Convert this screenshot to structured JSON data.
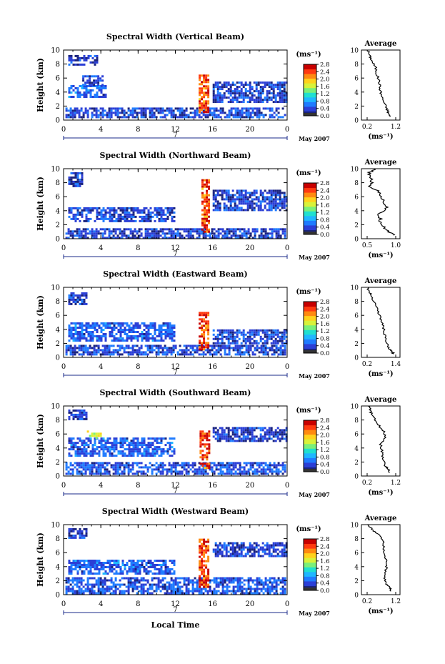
{
  "figure": {
    "x_label": "Local Time",
    "x_ticks": [
      "0",
      "4",
      "8",
      "12",
      "16",
      "20",
      "0"
    ],
    "date_marker": "7",
    "month_label": "May 2007",
    "y_label": "Height (km)",
    "y_ticks": [
      "0",
      "2",
      "4",
      "6",
      "8",
      "10"
    ],
    "colorbar_unit": "(ms⁻¹)",
    "colorbar_ticks": [
      "0.0",
      "0.4",
      "0.8",
      "1.2",
      "1.6",
      "2.0",
      "2.4",
      "2.8"
    ],
    "average_title": "Average",
    "average_xlabel": "(ms⁻¹)"
  },
  "panels": [
    {
      "title": "Spectral Width (Vertical Beam)",
      "avg_ticks": [
        "0.2",
        "1.2"
      ]
    },
    {
      "title": "Spectral Width (Northward Beam)",
      "avg_ticks": [
        "0.5",
        "1.0"
      ]
    },
    {
      "title": "Spectral Width (Eastward Beam)",
      "avg_ticks": [
        "0.2",
        "1.4"
      ]
    },
    {
      "title": "Spectral Width (Southward Beam)",
      "avg_ticks": [
        "0.2",
        "1.2"
      ]
    },
    {
      "title": "Spectral Width (Westward Beam)",
      "avg_ticks": [
        "0.2",
        "1.2"
      ]
    }
  ],
  "chart_data": [
    {
      "type": "heatmap",
      "title": "Spectral Width (Vertical Beam)",
      "xlabel": "",
      "ylabel": "Height (km)",
      "xlim": [
        0,
        24
      ],
      "ylim": [
        0,
        10
      ],
      "zlim": [
        0,
        3.0
      ],
      "zunit": "(ms⁻¹)",
      "colormap": [
        "#1a237e",
        "#2b3fd6",
        "#1f7bff",
        "#1fb7ff",
        "#20e0d0",
        "#7af07a",
        "#d8f23a",
        "#ffd21c",
        "#ff8a10",
        "#ff3a10",
        "#c80000"
      ],
      "blobs": [
        {
          "x": [
            0.2,
            23.8
          ],
          "y": [
            0.3,
            1.8
          ],
          "value": 0.45
        },
        {
          "x": [
            0.5,
            3.5
          ],
          "y": [
            8.0,
            9.3
          ],
          "value": 0.35
        },
        {
          "x": [
            0.5,
            4.5
          ],
          "y": [
            3.2,
            5.0
          ],
          "value": 0.55
        },
        {
          "x": [
            2.0,
            4.2
          ],
          "y": [
            5.0,
            6.4
          ],
          "value": 0.45
        },
        {
          "x": [
            14.5,
            15.6
          ],
          "y": [
            1.0,
            6.5
          ],
          "value": 2.6
        },
        {
          "x": [
            16,
            24
          ],
          "y": [
            2.5,
            5.5
          ],
          "value": 0.4
        }
      ],
      "average": {
        "x": [
          0.25,
          0.32,
          0.4,
          0.55,
          0.6,
          0.7,
          0.72,
          0.78,
          0.88,
          1.0,
          1.05,
          1.1
        ],
        "y": [
          10,
          9.2,
          8.5,
          7.5,
          6.5,
          5.5,
          4.5,
          3.5,
          2.5,
          1.5,
          1.0,
          0.5
        ],
        "xlim": [
          0,
          1.5
        ]
      }
    },
    {
      "type": "heatmap",
      "title": "Spectral Width (Northward Beam)",
      "xlabel": "",
      "ylabel": "Height (km)",
      "xlim": [
        0,
        24
      ],
      "ylim": [
        0,
        10
      ],
      "zlim": [
        0,
        3.0
      ],
      "zunit": "(ms⁻¹)",
      "colormap": [
        "#1a237e",
        "#2b3fd6",
        "#1f7bff",
        "#1fb7ff",
        "#20e0d0",
        "#7af07a",
        "#d8f23a",
        "#ffd21c",
        "#ff8a10",
        "#ff3a10",
        "#c80000"
      ],
      "blobs": [
        {
          "x": [
            0.2,
            23.8
          ],
          "y": [
            0.2,
            1.5
          ],
          "value": 0.4
        },
        {
          "x": [
            0.5,
            2.0
          ],
          "y": [
            7.5,
            9.5
          ],
          "value": 0.35
        },
        {
          "x": [
            0.5,
            12.0
          ],
          "y": [
            2.5,
            4.5
          ],
          "value": 0.45
        },
        {
          "x": [
            14.8,
            15.6
          ],
          "y": [
            1.0,
            8.5
          ],
          "value": 2.6
        },
        {
          "x": [
            16,
            24
          ],
          "y": [
            4.0,
            7.0
          ],
          "value": 0.4
        }
      ],
      "average": {
        "x": [
          0.6,
          0.45,
          0.55,
          0.5,
          0.75,
          0.8,
          0.9,
          0.7,
          0.75,
          0.85,
          0.95,
          1.05
        ],
        "y": [
          10,
          9.2,
          8.5,
          7.5,
          6.5,
          5.5,
          4.5,
          3.5,
          2.5,
          1.5,
          1.0,
          0.5
        ],
        "xlim": [
          0.3,
          1.2
        ]
      }
    },
    {
      "type": "heatmap",
      "title": "Spectral Width (Eastward Beam)",
      "xlabel": "",
      "ylabel": "Height (km)",
      "xlim": [
        0,
        24
      ],
      "ylim": [
        0,
        10
      ],
      "zlim": [
        0,
        3.0
      ],
      "zunit": "(ms⁻¹)",
      "colormap": [
        "#1a237e",
        "#2b3fd6",
        "#1f7bff",
        "#1fb7ff",
        "#20e0d0",
        "#7af07a",
        "#d8f23a",
        "#ffd21c",
        "#ff8a10",
        "#ff3a10",
        "#c80000"
      ],
      "blobs": [
        {
          "x": [
            0.2,
            23.8
          ],
          "y": [
            0.3,
            1.8
          ],
          "value": 0.45
        },
        {
          "x": [
            0.5,
            2.5
          ],
          "y": [
            7.5,
            9.3
          ],
          "value": 0.35
        },
        {
          "x": [
            0.5,
            12.0
          ],
          "y": [
            2.5,
            5.0
          ],
          "value": 0.55
        },
        {
          "x": [
            14.5,
            15.6
          ],
          "y": [
            1.0,
            6.5
          ],
          "value": 2.6
        },
        {
          "x": [
            16,
            24
          ],
          "y": [
            2.0,
            4.0
          ],
          "value": 0.4
        }
      ],
      "average": {
        "x": [
          0.25,
          0.35,
          0.45,
          0.6,
          0.7,
          0.8,
          0.9,
          0.95,
          1.0,
          1.1,
          1.2,
          1.35
        ],
        "y": [
          10,
          9.2,
          8.5,
          7.5,
          6.5,
          5.5,
          4.5,
          3.5,
          2.5,
          1.5,
          1.0,
          0.5
        ],
        "xlim": [
          0,
          1.6
        ]
      }
    },
    {
      "type": "heatmap",
      "title": "Spectral Width (Southward Beam)",
      "xlabel": "",
      "ylabel": "Height (km)",
      "xlim": [
        0,
        24
      ],
      "ylim": [
        0,
        10
      ],
      "zlim": [
        0,
        3.0
      ],
      "zunit": "(ms⁻¹)",
      "colormap": [
        "#1a237e",
        "#2b3fd6",
        "#1f7bff",
        "#1fb7ff",
        "#20e0d0",
        "#7af07a",
        "#d8f23a",
        "#ffd21c",
        "#ff8a10",
        "#ff3a10",
        "#c80000"
      ],
      "blobs": [
        {
          "x": [
            0.2,
            23.8
          ],
          "y": [
            0.3,
            2.0
          ],
          "value": 0.5
        },
        {
          "x": [
            0.5,
            2.5
          ],
          "y": [
            8.0,
            9.5
          ],
          "value": 0.35
        },
        {
          "x": [
            0.5,
            12.0
          ],
          "y": [
            3.0,
            5.5
          ],
          "value": 0.55
        },
        {
          "x": [
            2.5,
            4.0
          ],
          "y": [
            5.5,
            6.5
          ],
          "value": 1.8
        },
        {
          "x": [
            14.6,
            15.6
          ],
          "y": [
            1.0,
            6.5
          ],
          "value": 2.6
        },
        {
          "x": [
            16,
            24
          ],
          "y": [
            5.0,
            7.0
          ],
          "value": 0.4
        }
      ],
      "average": {
        "x": [
          0.3,
          0.35,
          0.45,
          0.6,
          0.85,
          0.95,
          0.75,
          0.8,
          0.85,
          0.9,
          1.05,
          1.1
        ],
        "y": [
          10,
          9.2,
          8.5,
          7.5,
          6.5,
          5.5,
          4.5,
          3.5,
          2.5,
          1.5,
          1.0,
          0.5
        ],
        "xlim": [
          0,
          1.5
        ]
      }
    },
    {
      "type": "heatmap",
      "title": "Spectral Width (Westward Beam)",
      "xlabel": "Local Time",
      "ylabel": "Height (km)",
      "xlim": [
        0,
        24
      ],
      "ylim": [
        0,
        10
      ],
      "zlim": [
        0,
        3.0
      ],
      "zunit": "(ms⁻¹)",
      "colormap": [
        "#1a237e",
        "#2b3fd6",
        "#1f7bff",
        "#1fb7ff",
        "#20e0d0",
        "#7af07a",
        "#d8f23a",
        "#ffd21c",
        "#ff8a10",
        "#ff3a10",
        "#c80000"
      ],
      "blobs": [
        {
          "x": [
            0.2,
            23.8
          ],
          "y": [
            0.3,
            2.5
          ],
          "value": 0.5
        },
        {
          "x": [
            0.5,
            2.5
          ],
          "y": [
            8.0,
            9.5
          ],
          "value": 0.35
        },
        {
          "x": [
            0.5,
            12.0
          ],
          "y": [
            3.0,
            5.0
          ],
          "value": 0.55
        },
        {
          "x": [
            14.5,
            15.6
          ],
          "y": [
            1.0,
            8.0
          ],
          "value": 2.6
        },
        {
          "x": [
            16,
            24
          ],
          "y": [
            5.5,
            7.5
          ],
          "value": 0.4
        }
      ],
      "average": {
        "x": [
          0.25,
          0.45,
          0.7,
          0.85,
          0.85,
          0.9,
          1.0,
          0.95,
          0.9,
          0.95,
          1.1,
          1.15
        ],
        "y": [
          10,
          9.2,
          8.5,
          7.5,
          6.5,
          5.5,
          4.5,
          3.5,
          2.5,
          1.5,
          1.0,
          0.5
        ],
        "xlim": [
          0,
          1.5
        ]
      }
    }
  ]
}
